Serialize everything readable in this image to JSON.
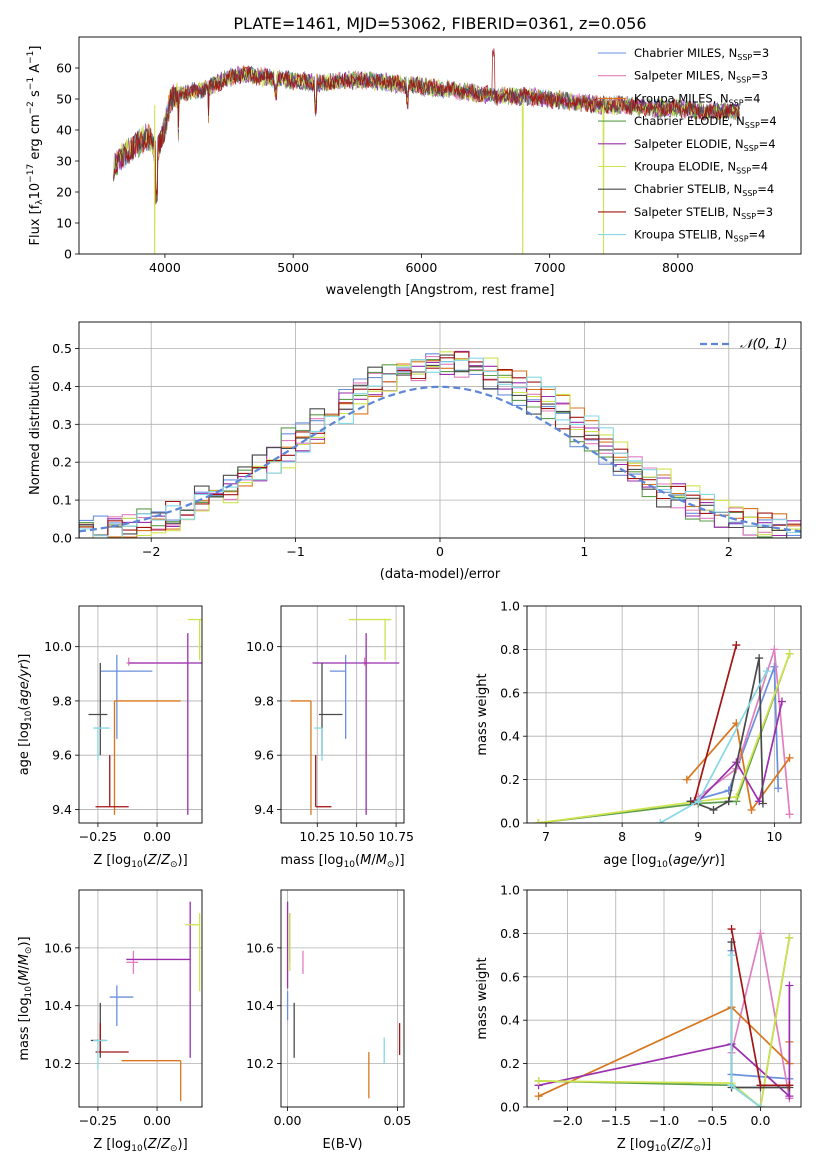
{
  "title": "PLATE=1461, MJD=53062, FIBERID=0361, z=0.056",
  "colors": {
    "Chabrier MILES": "#6a8fdc",
    "Salpeter MILES": "#e07fbe",
    "Kroupa MILES": "#d9761d",
    "Chabrier ELODIE": "#5c9e4d",
    "Salpeter ELODIE": "#9b2fae",
    "Kroupa ELODIE": "#cfe34e",
    "Chabrier STELIB": "#4a4a4a",
    "Salpeter STELIB": "#a31515",
    "Kroupa STELIB": "#86d8e6"
  },
  "chart_data": [
    {
      "type": "line",
      "panel": "spectrum",
      "title": "PLATE=1461, MJD=53062, FIBERID=0361, z=0.056",
      "xlabel": "wavelength [Angstrom, rest frame]",
      "ylabel": "Flux [f_λ10^-17 erg cm^-2 s^-1 A^-1]",
      "xlim": [
        3330,
        8960
      ],
      "ylim": [
        0,
        70
      ],
      "xticks": [
        "4000",
        "5000",
        "6000",
        "7000",
        "8000"
      ],
      "yticks": [
        "0",
        "10",
        "20",
        "30",
        "40",
        "50",
        "60"
      ],
      "legend_position": "top-right",
      "series": [
        {
          "name": "Chabrier MILES, N_SSP=3"
        },
        {
          "name": "Salpeter MILES, N_SSP=3"
        },
        {
          "name": "Kroupa MILES, N_SSP=4"
        },
        {
          "name": "Chabrier ELODIE, N_SSP=4"
        },
        {
          "name": "Salpeter ELODIE, N_SSP=4"
        },
        {
          "name": "Kroupa ELODIE, N_SSP=4"
        },
        {
          "name": "Chabrier STELIB, N_SSP=4"
        },
        {
          "name": "Salpeter STELIB, N_SSP=3"
        },
        {
          "name": "Kroupa STELIB, N_SSP=4"
        }
      ],
      "continuum": [
        [
          3600,
          28
        ],
        [
          3700,
          33
        ],
        [
          3800,
          36
        ],
        [
          3880,
          38
        ],
        [
          3930,
          32
        ],
        [
          3980,
          38
        ],
        [
          4050,
          50
        ],
        [
          4150,
          52
        ],
        [
          4300,
          53
        ],
        [
          4500,
          57
        ],
        [
          4600,
          58
        ],
        [
          4800,
          57
        ],
        [
          5000,
          56
        ],
        [
          5200,
          55
        ],
        [
          5400,
          56
        ],
        [
          5600,
          56
        ],
        [
          5800,
          55
        ],
        [
          6000,
          54
        ],
        [
          6200,
          53
        ],
        [
          6400,
          52
        ],
        [
          6563,
          51
        ],
        [
          6800,
          51
        ],
        [
          7000,
          50
        ],
        [
          7200,
          49
        ],
        [
          7400,
          48
        ],
        [
          7600,
          48
        ],
        [
          7800,
          47
        ],
        [
          8000,
          47
        ],
        [
          8200,
          46
        ],
        [
          8400,
          46
        ]
      ],
      "dropouts": [
        3920,
        6790,
        7420
      ]
    },
    {
      "type": "line",
      "panel": "residuals",
      "xlabel": "(data-model)/error",
      "ylabel": "Normed distribution",
      "xlim": [
        -2.5,
        2.5
      ],
      "ylim": [
        0,
        0.57
      ],
      "xticks": [
        "−2",
        "−1",
        "0",
        "1",
        "2"
      ],
      "yticks": [
        "0.0",
        "0.1",
        "0.2",
        "0.3",
        "0.4",
        "0.5"
      ],
      "legend": [
        "𝒩(0, 1)"
      ],
      "legend_position": "top-right",
      "bin_width": 0.1
    },
    {
      "type": "scatter",
      "panel": "Z-age",
      "xlabel": "Z [log10(Z/Z⊙)]",
      "ylabel": "age [log10(age/yr)]",
      "xlim": [
        -0.33,
        0.19
      ],
      "ylim": [
        9.35,
        10.15
      ],
      "xticks": [
        "−0.25",
        "0.00"
      ],
      "yticks": [
        "9.4",
        "9.6",
        "9.8",
        "10.0"
      ],
      "points": [
        {
          "s": "Chabrier MILES",
          "x": -0.17,
          "y": 9.91,
          "xe": [
            -0.24,
            -0.02
          ],
          "ye": [
            9.66,
            9.97
          ]
        },
        {
          "s": "Salpeter MILES",
          "x": -0.12,
          "y": 9.94,
          "xe": [
            -0.13,
            0.13
          ],
          "ye": [
            9.93,
            9.96
          ]
        },
        {
          "s": "Kroupa MILES",
          "x": -0.18,
          "y": 9.8,
          "xe": [
            -0.18,
            0.1
          ],
          "ye": [
            9.38,
            9.8
          ]
        },
        {
          "s": "Salpeter ELODIE",
          "x": 0.13,
          "y": 9.94,
          "xe": [
            -0.12,
            0.2
          ],
          "ye": [
            9.38,
            10.05
          ]
        },
        {
          "s": "Kroupa ELODIE",
          "x": 0.18,
          "y": 10.1,
          "xe": [
            0.13,
            0.19
          ],
          "ye": [
            9.95,
            10.1
          ]
        },
        {
          "s": "Chabrier STELIB",
          "x": -0.24,
          "y": 9.75,
          "xe": [
            -0.29,
            -0.21
          ],
          "ye": [
            9.6,
            9.94
          ]
        },
        {
          "s": "Salpeter STELIB",
          "x": -0.2,
          "y": 9.41,
          "xe": [
            -0.26,
            -0.12
          ],
          "ye": [
            9.41,
            9.6
          ]
        },
        {
          "s": "Kroupa STELIB",
          "x": -0.25,
          "y": 9.7,
          "xe": [
            -0.27,
            -0.2
          ],
          "ye": [
            9.58,
            9.7
          ]
        }
      ]
    },
    {
      "type": "scatter",
      "panel": "mass-age",
      "xlabel": "mass [log10(M/M⊙)]",
      "ylabel": "",
      "xlim": [
        10.02,
        10.8
      ],
      "ylim": [
        9.35,
        10.15
      ],
      "xticks": [
        "10.25",
        "10.50",
        "10.75"
      ],
      "yticks": [
        "9.4",
        "9.6",
        "9.8",
        "10.0"
      ],
      "points": [
        {
          "s": "Chabrier MILES",
          "x": 10.43,
          "y": 9.91,
          "xe": [
            10.33,
            10.43
          ],
          "ye": [
            9.66,
            9.97
          ]
        },
        {
          "s": "Salpeter MILES",
          "x": 10.55,
          "y": 9.94,
          "xe": [
            10.54,
            10.58
          ],
          "ye": [
            9.93,
            9.96
          ]
        },
        {
          "s": "Kroupa MILES",
          "x": 10.21,
          "y": 9.8,
          "xe": [
            10.08,
            10.21
          ],
          "ye": [
            9.38,
            9.8
          ]
        },
        {
          "s": "Salpeter ELODIE",
          "x": 10.56,
          "y": 9.94,
          "xe": [
            10.22,
            10.77
          ],
          "ye": [
            9.38,
            10.05
          ]
        },
        {
          "s": "Kroupa ELODIE",
          "x": 10.68,
          "y": 10.1,
          "xe": [
            10.45,
            10.72
          ],
          "ye": [
            9.95,
            10.1
          ]
        },
        {
          "s": "Chabrier STELIB",
          "x": 10.28,
          "y": 9.75,
          "xe": [
            10.26,
            10.41
          ],
          "ye": [
            9.6,
            9.94
          ]
        },
        {
          "s": "Salpeter STELIB",
          "x": 10.24,
          "y": 9.41,
          "xe": [
            10.24,
            10.34
          ],
          "ye": [
            9.41,
            9.6
          ]
        },
        {
          "s": "Kroupa STELIB",
          "x": 10.28,
          "y": 9.7,
          "xe": [
            10.23,
            10.28
          ],
          "ye": [
            9.58,
            9.7
          ]
        }
      ]
    },
    {
      "type": "line",
      "panel": "age-weight",
      "xlabel": "age [log10(age/yr)]",
      "ylabel": "mass weight",
      "xlim": [
        6.75,
        10.35
      ],
      "ylim": [
        0,
        1.0
      ],
      "xticks": [
        "7",
        "8",
        "9",
        "10"
      ],
      "yticks": [
        "0.0",
        "0.2",
        "0.4",
        "0.6",
        "0.8",
        "1.0"
      ],
      "series": [
        {
          "s": "Chabrier MILES",
          "x": [
            8.9,
            9.4,
            10.0,
            10.05
          ],
          "y": [
            0.1,
            0.15,
            0.72,
            0.16
          ]
        },
        {
          "s": "Salpeter MILES",
          "x": [
            9.0,
            9.5,
            10.0,
            10.2
          ],
          "y": [
            0.12,
            0.25,
            0.8,
            0.04
          ]
        },
        {
          "s": "Kroupa MILES",
          "x": [
            8.85,
            9.5,
            9.7,
            10.2
          ],
          "y": [
            0.2,
            0.46,
            0.06,
            0.3
          ]
        },
        {
          "s": "Chabrier ELODIE",
          "x": [
            6.9,
            9.0,
            9.5,
            10.2
          ],
          "y": [
            0.0,
            0.09,
            0.1,
            0.78
          ]
        },
        {
          "s": "Salpeter ELODIE",
          "x": [
            9.0,
            9.5,
            9.8,
            10.1
          ],
          "y": [
            0.1,
            0.28,
            0.1,
            0.56
          ]
        },
        {
          "s": "Kroupa ELODIE",
          "x": [
            6.9,
            9.0,
            9.5,
            10.2
          ],
          "y": [
            0.0,
            0.1,
            0.12,
            0.78
          ]
        },
        {
          "s": "Chabrier STELIB",
          "x": [
            8.9,
            9.2,
            9.4,
            9.8,
            9.85
          ],
          "y": [
            0.1,
            0.06,
            0.1,
            0.76,
            0.09
          ]
        },
        {
          "s": "Salpeter STELIB",
          "x": [
            8.95,
            9.5
          ],
          "y": [
            0.1,
            0.82
          ]
        },
        {
          "s": "Kroupa STELIB",
          "x": [
            8.5,
            9.0,
            9.9
          ],
          "y": [
            0.0,
            0.1,
            0.7
          ]
        }
      ]
    },
    {
      "type": "scatter",
      "panel": "Z-mass",
      "xlabel": "Z [log10(Z/Z⊙)]",
      "ylabel": "mass [log10(M/M⊙)]",
      "xlim": [
        -0.33,
        0.19
      ],
      "ylim": [
        10.05,
        10.8
      ],
      "xticks": [
        "−0.25",
        "0.00"
      ],
      "yticks": [
        "10.2",
        "10.4",
        "10.6"
      ],
      "points": [
        {
          "s": "Chabrier MILES",
          "x": -0.17,
          "y": 10.43,
          "xe": [
            -0.2,
            -0.1
          ],
          "ye": [
            10.33,
            10.47
          ]
        },
        {
          "s": "Salpeter MILES",
          "x": -0.1,
          "y": 10.55,
          "xe": [
            -0.13,
            -0.08
          ],
          "ye": [
            10.51,
            10.59
          ]
        },
        {
          "s": "Kroupa MILES",
          "x": 0.1,
          "y": 10.21,
          "xe": [
            -0.15,
            0.1
          ],
          "ye": [
            10.07,
            10.21
          ]
        },
        {
          "s": "Salpeter ELODIE",
          "x": 0.14,
          "y": 10.56,
          "xe": [
            -0.13,
            0.14
          ],
          "ye": [
            10.22,
            10.76
          ]
        },
        {
          "s": "Kroupa ELODIE",
          "x": 0.18,
          "y": 10.68,
          "xe": [
            0.12,
            0.18
          ],
          "ye": [
            10.45,
            10.72
          ]
        },
        {
          "s": "Chabrier STELIB",
          "x": -0.24,
          "y": 10.28,
          "xe": [
            -0.28,
            -0.22
          ],
          "ye": [
            10.22,
            10.41
          ]
        },
        {
          "s": "Salpeter STELIB",
          "x": -0.24,
          "y": 10.24,
          "xe": [
            -0.26,
            -0.12
          ],
          "ye": [
            10.24,
            10.34
          ]
        },
        {
          "s": "Kroupa STELIB",
          "x": -0.25,
          "y": 10.28,
          "xe": [
            -0.27,
            -0.21
          ],
          "ye": [
            10.18,
            10.28
          ]
        }
      ]
    },
    {
      "type": "scatter",
      "panel": "EBV-mass",
      "xlabel": "E(B-V)",
      "ylabel": "",
      "xlim": [
        -0.003,
        0.053
      ],
      "ylim": [
        10.05,
        10.8
      ],
      "xticks": [
        "0.00",
        "0.05"
      ],
      "yticks": [
        "10.2",
        "10.4",
        "10.6"
      ],
      "bars": [
        {
          "s": "Chabrier MILES",
          "x": 0.0,
          "ye": [
            10.35,
            10.45
          ]
        },
        {
          "s": "Salpeter MILES",
          "x": 0.007,
          "ye": [
            10.51,
            10.59
          ]
        },
        {
          "s": "Kroupa MILES",
          "x": 0.037,
          "ye": [
            10.08,
            10.24
          ]
        },
        {
          "s": "Chabrier ELODIE",
          "x": 0.001,
          "ye": [
            10.55,
            10.72
          ]
        },
        {
          "s": "Salpeter ELODIE",
          "x": 0.0,
          "ye": [
            10.46,
            10.76
          ]
        },
        {
          "s": "Kroupa ELODIE",
          "x": 0.001,
          "ye": [
            10.52,
            10.72
          ]
        },
        {
          "s": "Chabrier STELIB",
          "x": 0.003,
          "ye": [
            10.22,
            10.41
          ]
        },
        {
          "s": "Salpeter STELIB",
          "x": 0.051,
          "ye": [
            10.23,
            10.34
          ]
        },
        {
          "s": "Kroupa STELIB",
          "x": 0.044,
          "ye": [
            10.2,
            10.29
          ]
        }
      ]
    },
    {
      "type": "line",
      "panel": "Z-weight",
      "xlabel": "Z [log10(Z/Z⊙)]",
      "ylabel": "mass weight",
      "xlim": [
        -2.42,
        0.42
      ],
      "ylim": [
        0,
        1.0
      ],
      "xticks": [
        "−2.0",
        "−1.5",
        "−1.0",
        "−0.5",
        "0.0"
      ],
      "yticks": [
        "0.0",
        "0.2",
        "0.4",
        "0.6",
        "0.8",
        "1.0"
      ],
      "series": [
        {
          "s": "Chabrier MILES",
          "x": [
            -0.3,
            -0.3,
            0.3
          ],
          "y": [
            0.72,
            0.15,
            0.13
          ]
        },
        {
          "s": "Salpeter MILES",
          "x": [
            -0.3,
            0.0,
            0.3
          ],
          "y": [
            0.25,
            0.8,
            0.04
          ]
        },
        {
          "s": "Kroupa MILES",
          "x": [
            -2.3,
            -0.3,
            0.3,
            0.3
          ],
          "y": [
            0.05,
            0.46,
            0.2,
            0.3
          ]
        },
        {
          "s": "Chabrier ELODIE",
          "x": [
            -2.3,
            -0.3,
            0.0,
            0.3
          ],
          "y": [
            0.12,
            0.1,
            0.0,
            0.78
          ]
        },
        {
          "s": "Salpeter ELODIE",
          "x": [
            -2.3,
            -0.3,
            0.3,
            0.3
          ],
          "y": [
            0.1,
            0.29,
            0.05,
            0.56
          ]
        },
        {
          "s": "Kroupa ELODIE",
          "x": [
            -2.3,
            -0.3,
            0.0,
            0.3
          ],
          "y": [
            0.12,
            0.11,
            0.0,
            0.78
          ]
        },
        {
          "s": "Chabrier STELIB",
          "x": [
            -0.3,
            -0.3,
            0.0,
            0.3
          ],
          "y": [
            0.76,
            0.09,
            0.09,
            0.09
          ]
        },
        {
          "s": "Salpeter STELIB",
          "x": [
            -0.3,
            0.0,
            0.3
          ],
          "y": [
            0.82,
            0.1,
            0.1
          ]
        },
        {
          "s": "Kroupa STELIB",
          "x": [
            -0.3,
            -0.3,
            0.0
          ],
          "y": [
            0.7,
            0.1,
            0.0
          ]
        }
      ]
    }
  ]
}
